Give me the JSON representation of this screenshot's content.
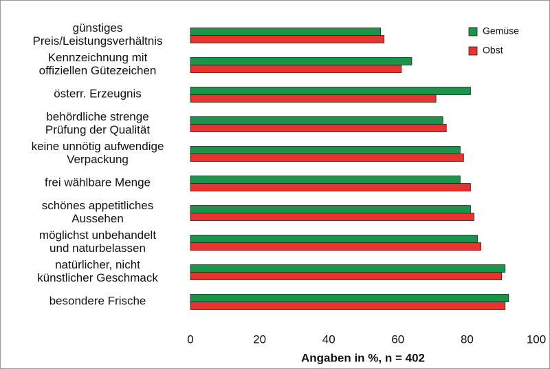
{
  "chart_data": {
    "type": "hbar",
    "x_label": "Angaben in %, n = 402",
    "categories": [
      "günstiges\nPreis/Leistungsverhältnis",
      "Kennzeichnung mit\noffiziellen Gütezeichen",
      "österr. Erzeugnis",
      "behördliche strenge\nPrüfung der Qualität",
      "keine unnötig aufwendige\nVerpackung",
      "frei wählbare Menge",
      "schönes appetitliches\nAussehen",
      "möglichst unbehandelt\nund naturbelassen",
      "natürlicher, nicht\nkünstlicher Geschmack",
      "besondere Frische"
    ],
    "series": [
      {
        "name": "Gemüse",
        "color": "#1a9448",
        "values": [
          55,
          64,
          81,
          73,
          78,
          78,
          81,
          83,
          91,
          92
        ]
      },
      {
        "name": "Obst",
        "color": "#e8332e",
        "values": [
          56,
          61,
          71,
          74,
          79,
          81,
          82,
          84,
          90,
          91
        ]
      }
    ],
    "xlim": [
      0,
      100
    ],
    "xticks": [
      0,
      20,
      40,
      60,
      80,
      100
    ],
    "legend": "top-right"
  }
}
